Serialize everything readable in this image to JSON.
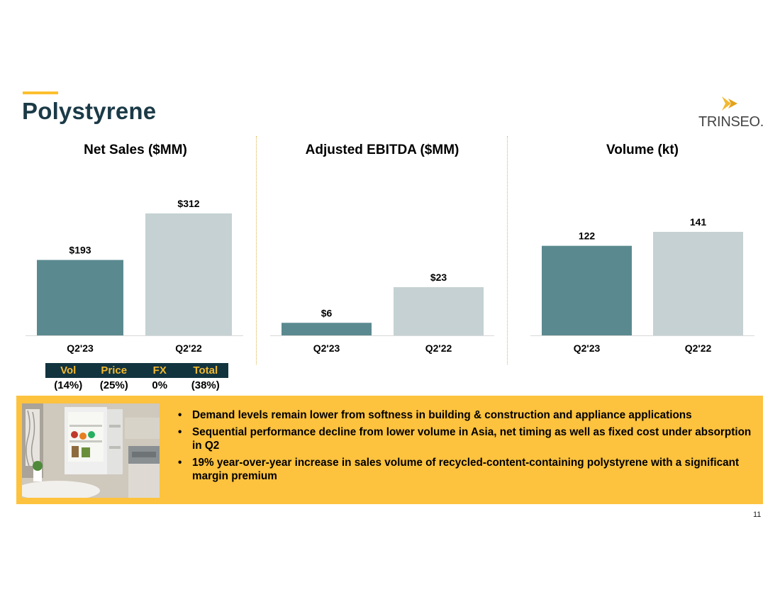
{
  "slide": {
    "title": "Polystyrene",
    "logo_text": "TRINSEO.",
    "page_number": "11"
  },
  "colors": {
    "accent": "#FBC02D",
    "title": "#1B3A47",
    "current_bar": "#5A8A8F",
    "prior_bar": "#C5D1D2",
    "bridge_header_bg": "#12343F",
    "bridge_header_text": "#F2B82E",
    "banner_bg": "#FDC23E"
  },
  "chart_data": [
    {
      "type": "bar",
      "title": "Net Sales ($MM)",
      "categories": [
        "Q2'23",
        "Q2'22"
      ],
      "values": [
        193,
        312
      ],
      "data_labels": [
        "$193",
        "$312"
      ]
    },
    {
      "type": "bar",
      "title": "Adjusted EBITDA ($MM)",
      "categories": [
        "Q2'23",
        "Q2'22"
      ],
      "values": [
        6,
        23
      ],
      "data_labels": [
        "$6",
        "$23"
      ]
    },
    {
      "type": "bar",
      "title": "Volume (kt)",
      "categories": [
        "Q2'23",
        "Q2'22"
      ],
      "values": [
        122,
        141
      ],
      "data_labels": [
        "122",
        "141"
      ]
    }
  ],
  "bridge": {
    "headers": [
      "Vol",
      "Price",
      "FX",
      "Total"
    ],
    "values": [
      "(14%)",
      "(25%)",
      "0%",
      "(38%)"
    ]
  },
  "banner": {
    "photo_icon": "open-refrigerator-kitchen-photo",
    "bullets": [
      "Demand levels remain lower from softness in building & construction and appliance applications",
      "Sequential performance decline from lower volume in Asia, net timing as well as fixed cost under absorption in Q2",
      "19% year-over-year increase in sales volume of recycled-content-containing polystyrene with a significant margin premium"
    ]
  }
}
